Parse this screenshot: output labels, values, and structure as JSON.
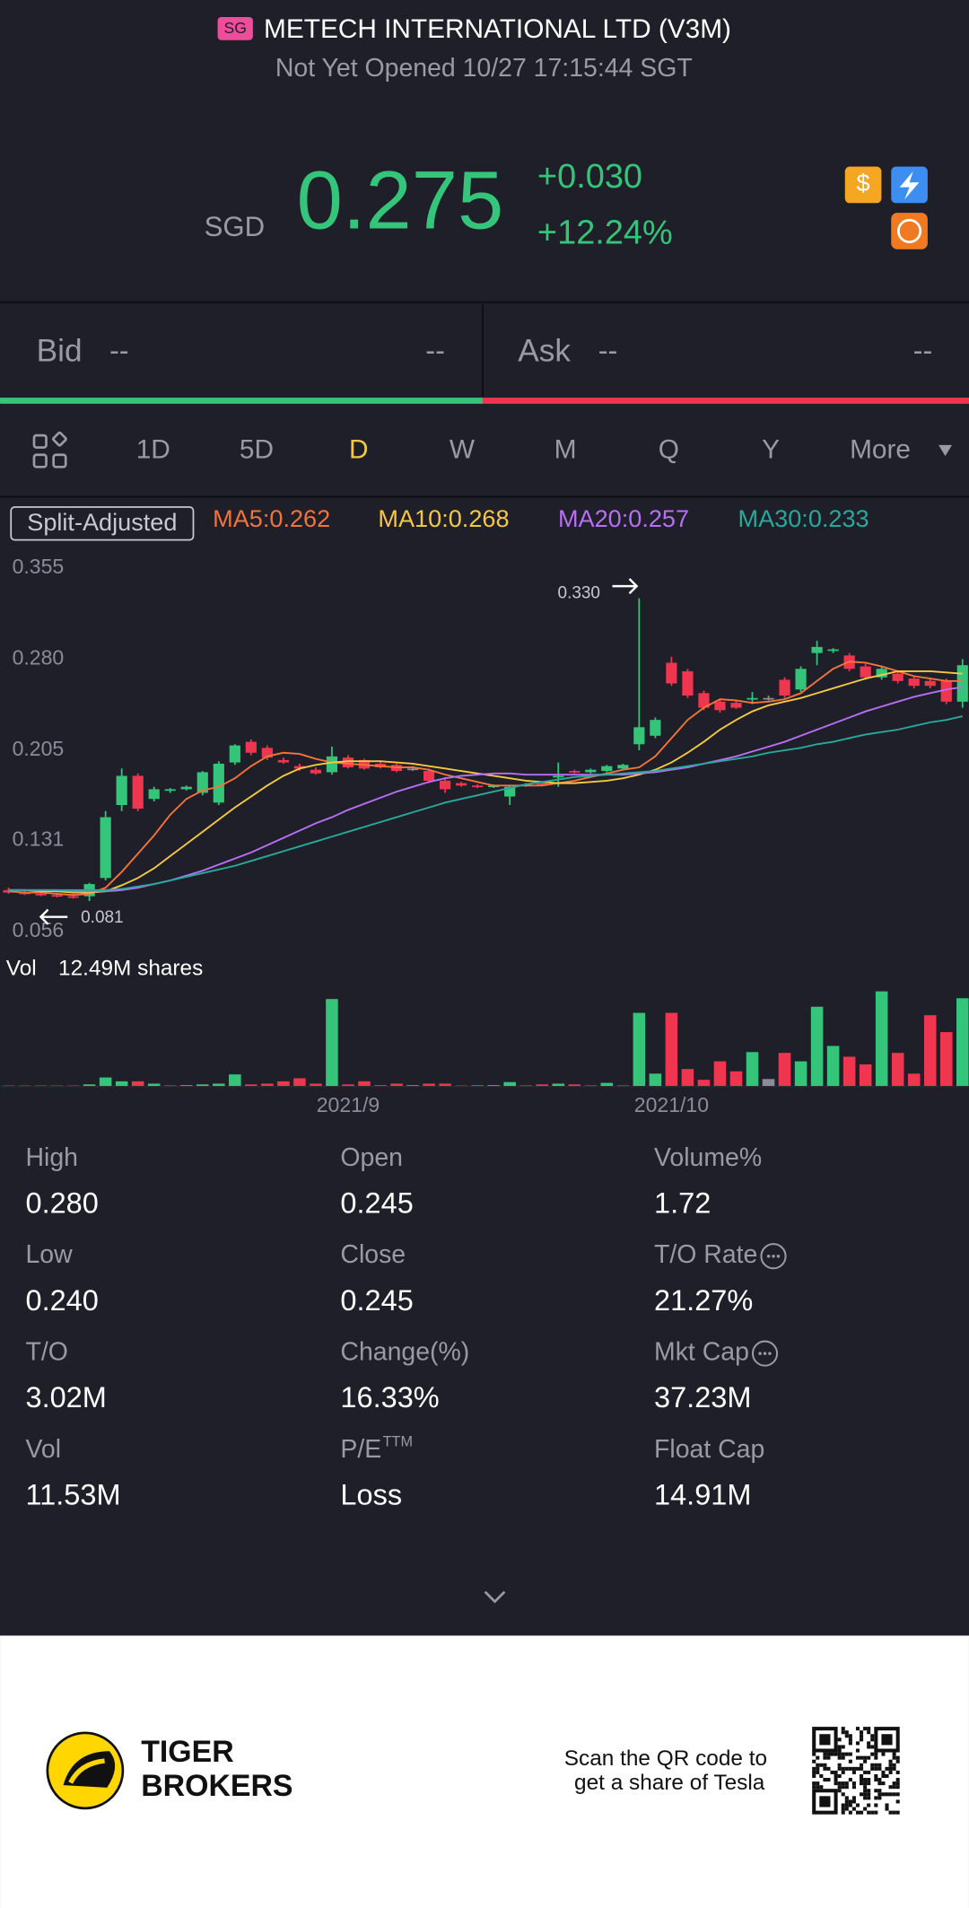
{
  "header": {
    "market": "SG",
    "title": "METECH INTERNATIONAL LTD (V3M)",
    "status": "Not Yet Opened 10/27 17:15:44 SGT"
  },
  "quote": {
    "currency": "SGD",
    "price": "0.275",
    "change": "+0.030",
    "change_pct": "+12.24%"
  },
  "order_book": {
    "bid_label": "Bid",
    "bid_price": "--",
    "bid_size": "--",
    "ask_label": "Ask",
    "ask_price": "--",
    "ask_size": "--"
  },
  "tabs": {
    "items": [
      "1D",
      "5D",
      "D",
      "W",
      "M",
      "Q",
      "Y",
      "More"
    ],
    "active": "D"
  },
  "chart_data": {
    "type": "candlestick",
    "badge": "Split-Adjusted",
    "ylim": [
      0.056,
      0.355
    ],
    "yticks": [
      0.355,
      {
        "value": 0.28,
        "label": "0.280"
      },
      0.205,
      0.131,
      0.056
    ],
    "categories": [
      null,
      null,
      null,
      null,
      null,
      null,
      null,
      null,
      null,
      null,
      null,
      null,
      null,
      null,
      null,
      null,
      null,
      null,
      null,
      null,
      null,
      "2021/9",
      null,
      null,
      null,
      null,
      null,
      null,
      null,
      null,
      null,
      null,
      null,
      null,
      null,
      null,
      null,
      null,
      null,
      null,
      null,
      "2021/10",
      null,
      null,
      null,
      null,
      null,
      null,
      null,
      null,
      null,
      null,
      null,
      null,
      null,
      null,
      null,
      null,
      null,
      null
    ],
    "up_color": "#35c57a",
    "down_color": "#f0364e",
    "flat_color": "#8a8c9a",
    "annotations": {
      "high": "0.330",
      "low": "0.081"
    },
    "ohlc": [
      [
        0.09,
        0.092,
        0.087,
        0.088
      ],
      [
        0.088,
        0.09,
        0.086,
        0.087
      ],
      [
        0.087,
        0.089,
        0.085,
        0.086
      ],
      [
        0.086,
        0.088,
        0.084,
        0.085
      ],
      [
        0.085,
        0.087,
        0.083,
        0.084
      ],
      [
        0.085,
        0.096,
        0.081,
        0.095
      ],
      [
        0.1,
        0.155,
        0.098,
        0.15
      ],
      [
        0.16,
        0.19,
        0.155,
        0.184
      ],
      [
        0.184,
        0.186,
        0.155,
        0.157
      ],
      [
        0.165,
        0.175,
        0.163,
        0.173
      ],
      [
        0.172,
        0.174,
        0.17,
        0.173
      ],
      [
        0.173,
        0.176,
        0.172,
        0.175
      ],
      [
        0.17,
        0.188,
        0.168,
        0.187
      ],
      [
        0.162,
        0.196,
        0.16,
        0.194
      ],
      [
        0.195,
        0.21,
        0.193,
        0.209
      ],
      [
        0.212,
        0.214,
        0.201,
        0.203
      ],
      [
        0.207,
        0.209,
        0.197,
        0.199
      ],
      [
        0.197,
        0.199,
        0.194,
        0.195
      ],
      [
        0.192,
        0.194,
        0.188,
        0.19
      ],
      [
        0.189,
        0.191,
        0.185,
        0.186
      ],
      [
        0.187,
        0.208,
        0.185,
        0.2
      ],
      [
        0.199,
        0.201,
        0.19,
        0.191
      ],
      [
        0.197,
        0.198,
        0.189,
        0.19
      ],
      [
        0.194,
        0.196,
        0.19,
        0.191
      ],
      [
        0.193,
        0.194,
        0.187,
        0.188
      ],
      [
        0.19,
        0.192,
        0.188,
        0.19
      ],
      [
        0.188,
        0.19,
        0.178,
        0.18
      ],
      [
        0.18,
        0.183,
        0.17,
        0.173
      ],
      [
        0.178,
        0.179,
        0.175,
        0.176
      ],
      [
        0.176,
        0.177,
        0.174,
        0.175
      ],
      [
        0.175,
        0.177,
        0.174,
        0.176
      ],
      [
        0.167,
        0.176,
        0.16,
        0.175
      ],
      [
        0.176,
        0.178,
        0.175,
        0.177
      ],
      [
        0.178,
        0.179,
        0.176,
        0.177
      ],
      [
        0.183,
        0.195,
        0.175,
        0.184
      ],
      [
        0.188,
        0.189,
        0.186,
        0.187
      ],
      [
        0.187,
        0.19,
        0.186,
        0.189
      ],
      [
        0.188,
        0.193,
        0.187,
        0.192
      ],
      [
        0.19,
        0.194,
        0.189,
        0.193
      ],
      [
        0.21,
        0.33,
        0.205,
        0.224
      ],
      [
        0.217,
        0.232,
        0.215,
        0.23
      ],
      [
        0.277,
        0.282,
        0.258,
        0.26
      ],
      [
        0.27,
        0.272,
        0.248,
        0.25
      ],
      [
        0.252,
        0.254,
        0.238,
        0.24
      ],
      [
        0.245,
        0.247,
        0.236,
        0.238
      ],
      [
        0.244,
        0.246,
        0.239,
        0.24
      ],
      [
        0.247,
        0.253,
        0.243,
        0.248
      ],
      [
        0.248,
        0.25,
        0.246,
        0.248
      ],
      [
        0.263,
        0.265,
        0.248,
        0.25
      ],
      [
        0.255,
        0.274,
        0.253,
        0.272
      ],
      [
        0.285,
        0.295,
        0.275,
        0.29
      ],
      [
        0.287,
        0.289,
        0.285,
        0.288
      ],
      [
        0.283,
        0.285,
        0.27,
        0.272
      ],
      [
        0.274,
        0.276,
        0.263,
        0.265
      ],
      [
        0.265,
        0.274,
        0.263,
        0.272
      ],
      [
        0.268,
        0.27,
        0.26,
        0.262
      ],
      [
        0.264,
        0.266,
        0.256,
        0.258
      ],
      [
        0.262,
        0.264,
        0.256,
        0.258
      ],
      [
        0.262,
        0.264,
        0.243,
        0.245
      ],
      [
        0.245,
        0.28,
        0.24,
        0.275
      ]
    ],
    "series": [
      {
        "name": "MA5:0.262",
        "color": "#f5733a",
        "values": [
          0.089,
          0.088,
          0.088,
          0.087,
          0.086,
          0.087,
          0.092,
          0.105,
          0.12,
          0.135,
          0.152,
          0.165,
          0.172,
          0.175,
          0.182,
          0.192,
          0.2,
          0.203,
          0.202,
          0.198,
          0.195,
          0.194,
          0.193,
          0.192,
          0.191,
          0.191,
          0.189,
          0.185,
          0.182,
          0.179,
          0.176,
          0.176,
          0.176,
          0.176,
          0.178,
          0.18,
          0.183,
          0.186,
          0.189,
          0.191,
          0.2,
          0.215,
          0.23,
          0.24,
          0.247,
          0.246,
          0.244,
          0.245,
          0.247,
          0.252,
          0.262,
          0.272,
          0.278,
          0.277,
          0.274,
          0.27,
          0.266,
          0.264,
          0.262,
          0.262
        ]
      },
      {
        "name": "MA10:0.268",
        "color": "#f5c842",
        "values": [
          0.09,
          0.09,
          0.089,
          0.089,
          0.088,
          0.088,
          0.089,
          0.094,
          0.1,
          0.108,
          0.118,
          0.128,
          0.138,
          0.148,
          0.158,
          0.167,
          0.176,
          0.184,
          0.19,
          0.193,
          0.195,
          0.196,
          0.196,
          0.196,
          0.195,
          0.194,
          0.192,
          0.19,
          0.188,
          0.186,
          0.184,
          0.182,
          0.18,
          0.179,
          0.178,
          0.178,
          0.179,
          0.18,
          0.182,
          0.185,
          0.189,
          0.195,
          0.203,
          0.212,
          0.222,
          0.23,
          0.237,
          0.242,
          0.245,
          0.248,
          0.252,
          0.256,
          0.26,
          0.264,
          0.267,
          0.27,
          0.27,
          0.27,
          0.269,
          0.268
        ]
      },
      {
        "name": "MA20:0.257",
        "color": "#b86ef5",
        "values": [
          0.09,
          0.09,
          0.09,
          0.09,
          0.089,
          0.089,
          0.089,
          0.09,
          0.092,
          0.095,
          0.098,
          0.102,
          0.106,
          0.111,
          0.116,
          0.121,
          0.127,
          0.133,
          0.139,
          0.145,
          0.15,
          0.156,
          0.161,
          0.166,
          0.171,
          0.175,
          0.179,
          0.182,
          0.184,
          0.185,
          0.186,
          0.186,
          0.185,
          0.185,
          0.185,
          0.185,
          0.185,
          0.185,
          0.185,
          0.186,
          0.187,
          0.189,
          0.191,
          0.194,
          0.197,
          0.2,
          0.204,
          0.208,
          0.212,
          0.217,
          0.222,
          0.227,
          0.232,
          0.237,
          0.241,
          0.245,
          0.249,
          0.252,
          0.255,
          0.257
        ]
      },
      {
        "name": "MA30:0.233",
        "color": "#28a99b",
        "values": [
          0.09,
          0.09,
          0.09,
          0.09,
          0.09,
          0.09,
          0.09,
          0.091,
          0.093,
          0.095,
          0.098,
          0.101,
          0.104,
          0.107,
          0.11,
          0.114,
          0.118,
          0.122,
          0.126,
          0.13,
          0.134,
          0.138,
          0.142,
          0.146,
          0.15,
          0.154,
          0.158,
          0.162,
          0.165,
          0.168,
          0.171,
          0.174,
          0.177,
          0.179,
          0.181,
          0.183,
          0.184,
          0.185,
          0.186,
          0.187,
          0.188,
          0.19,
          0.192,
          0.194,
          0.196,
          0.198,
          0.2,
          0.203,
          0.205,
          0.207,
          0.21,
          0.212,
          0.215,
          0.218,
          0.22,
          0.222,
          0.225,
          0.228,
          0.23,
          0.233
        ]
      }
    ],
    "volume": {
      "label": "Vol",
      "max_label": "12.49M shares",
      "max": 12.49,
      "values": [
        0.05,
        0.05,
        0.05,
        0.05,
        0.05,
        0.2,
        1.1,
        0.6,
        0.6,
        0.3,
        0.05,
        0.1,
        0.2,
        0.3,
        1.5,
        0.2,
        0.3,
        0.6,
        1.0,
        0.3,
        11.3,
        0.2,
        0.6,
        0.1,
        0.3,
        0.1,
        0.3,
        0.3,
        0.05,
        0.1,
        0.1,
        0.5,
        0.05,
        0.2,
        0.3,
        0.2,
        0.05,
        0.4,
        0.05,
        9.5,
        1.6,
        9.5,
        2.2,
        0.8,
        3.2,
        1.9,
        4.4,
        0.9,
        4.3,
        3.2,
        10.3,
        5.2,
        3.8,
        2.8,
        12.3,
        4.3,
        1.6,
        9.2,
        7.0,
        11.4
      ]
    }
  },
  "stats": [
    [
      {
        "label": "High",
        "value": "0.280"
      },
      {
        "label": "Open",
        "value": "0.245"
      },
      {
        "label": "Volume%",
        "value": "1.72"
      }
    ],
    [
      {
        "label": "Low",
        "value": "0.240"
      },
      {
        "label": "Close",
        "value": "0.245"
      },
      {
        "label": "T/O Rate",
        "value": "21.27%"
      }
    ],
    [
      {
        "label": "T/O",
        "value": "3.02M"
      },
      {
        "label": "Change(%)",
        "value": "16.33%"
      },
      {
        "label": "Mkt Cap",
        "value": "37.23M"
      }
    ],
    [
      {
        "label": "Vol",
        "value": "11.53M"
      },
      {
        "label": "P/E",
        "sup": "TTM",
        "value": "Loss"
      },
      {
        "label": "Float Cap",
        "value": "14.91M"
      }
    ]
  ],
  "footer": {
    "brand_line1": "TIGER",
    "brand_line2": "BROKERS",
    "promo_line1": "Scan the QR code to",
    "promo_line2": "get a share of Tesla"
  }
}
